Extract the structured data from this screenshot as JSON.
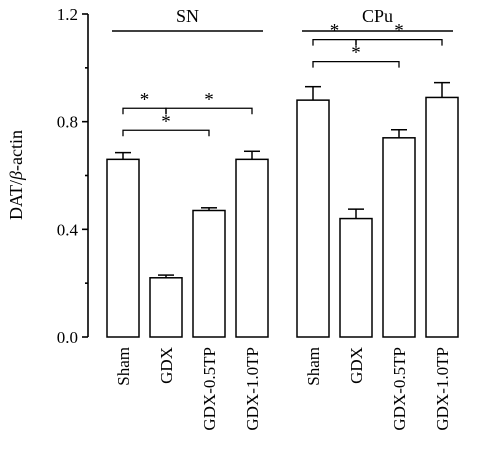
{
  "chart_data": {
    "type": "bar",
    "ylabel_parts": [
      "DAT/",
      "β",
      "-actin"
    ],
    "ylim": [
      0,
      1.2
    ],
    "yticks": [
      "0.0",
      "0.4",
      "0.8",
      "1.2"
    ],
    "categories": [
      "Sham",
      "GDX",
      "GDX-0.5TP",
      "GDX-1.0TP"
    ],
    "groups": [
      {
        "name": "SN",
        "values": [
          0.66,
          0.22,
          0.47,
          0.66
        ],
        "errors": [
          0.025,
          0.01,
          0.01,
          0.03
        ],
        "significance": [
          {
            "from": 0,
            "to": 1,
            "label": "*"
          },
          {
            "from": 1,
            "to": 3,
            "label": "*"
          },
          {
            "from": 0,
            "to": 2,
            "label": "*"
          }
        ]
      },
      {
        "name": "CPu",
        "values": [
          0.88,
          0.44,
          0.74,
          0.89
        ],
        "errors": [
          0.05,
          0.035,
          0.03,
          0.055
        ],
        "significance": [
          {
            "from": 0,
            "to": 1,
            "label": "*"
          },
          {
            "from": 1,
            "to": 3,
            "label": "*"
          },
          {
            "from": 0,
            "to": 2,
            "label": "*"
          }
        ]
      }
    ]
  }
}
